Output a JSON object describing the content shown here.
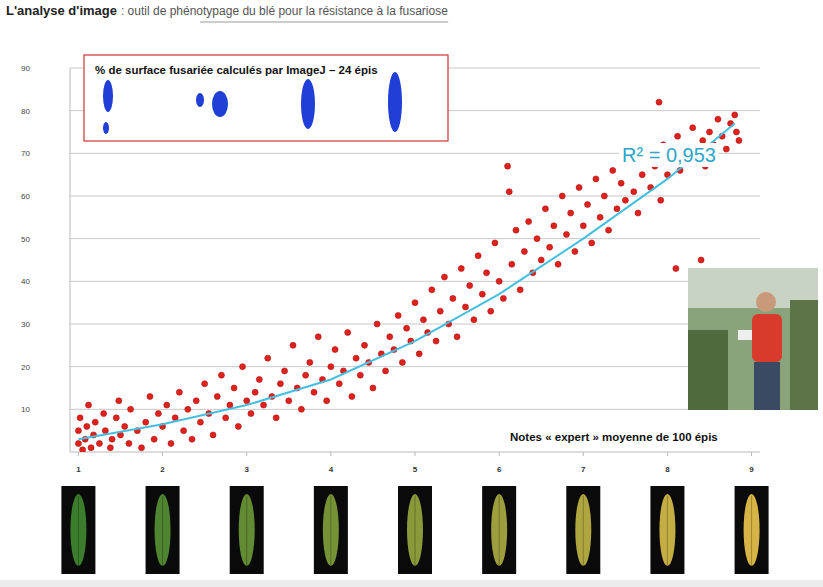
{
  "chart_data": {
    "type": "scatter",
    "title": "L'analyse d'image",
    "subtitle": ": outil de phénotypage du blé pour la résistance à la fusariose",
    "y_label": "% de surface fusariée calculés par ImageJ – 24 épis",
    "x_label": "Notes « expert » moyenne de 100 épis",
    "annotations": [
      "R² = 0,953"
    ],
    "xlim": [
      0.9,
      9.1
    ],
    "xticks": [
      1,
      2,
      3,
      4,
      5,
      6,
      7,
      8,
      9
    ],
    "ylim": [
      0,
      90
    ],
    "yticks": [
      10,
      20,
      30,
      40,
      50,
      60,
      70,
      80,
      90
    ],
    "grid": true,
    "series": [
      {
        "type": "scatter",
        "color": "#e3211c",
        "marker": "circle",
        "x": [
          1.0,
          1.0,
          1.02,
          1.05,
          1.08,
          1.1,
          1.12,
          1.15,
          1.18,
          1.2,
          1.25,
          1.3,
          1.32,
          1.38,
          1.4,
          1.45,
          1.48,
          1.5,
          1.55,
          1.6,
          1.62,
          1.7,
          1.75,
          1.8,
          1.85,
          1.9,
          1.95,
          2.0,
          2.05,
          2.1,
          2.15,
          2.2,
          2.25,
          2.3,
          2.35,
          2.4,
          2.45,
          2.5,
          2.55,
          2.6,
          2.65,
          2.7,
          2.75,
          2.8,
          2.85,
          2.9,
          2.95,
          3.0,
          3.05,
          3.1,
          3.15,
          3.2,
          3.25,
          3.3,
          3.35,
          3.4,
          3.45,
          3.5,
          3.55,
          3.6,
          3.65,
          3.7,
          3.75,
          3.8,
          3.85,
          3.9,
          3.95,
          4.0,
          4.05,
          4.1,
          4.15,
          4.2,
          4.25,
          4.3,
          4.35,
          4.4,
          4.45,
          4.5,
          4.55,
          4.6,
          4.65,
          4.7,
          4.75,
          4.8,
          4.85,
          4.9,
          4.95,
          5.0,
          5.05,
          5.1,
          5.15,
          5.2,
          5.25,
          5.3,
          5.35,
          5.4,
          5.45,
          5.5,
          5.55,
          5.6,
          5.65,
          5.7,
          5.75,
          5.8,
          5.85,
          5.9,
          5.95,
          6.0,
          6.05,
          6.1,
          6.12,
          6.15,
          6.2,
          6.25,
          6.3,
          6.35,
          6.4,
          6.45,
          6.5,
          6.55,
          6.6,
          6.65,
          6.7,
          6.75,
          6.8,
          6.85,
          6.9,
          6.95,
          7.0,
          7.05,
          7.1,
          7.15,
          7.2,
          7.25,
          7.3,
          7.35,
          7.4,
          7.45,
          7.5,
          7.55,
          7.6,
          7.65,
          7.7,
          7.75,
          7.8,
          7.85,
          7.9,
          7.92,
          7.95,
          8.0,
          8.05,
          8.1,
          8.12,
          8.15,
          8.2,
          8.25,
          8.3,
          8.35,
          8.4,
          8.42,
          8.45,
          8.5,
          8.55,
          8.6,
          8.65,
          8.7,
          8.75,
          8.8,
          8.82,
          8.85
        ],
        "values": [
          2,
          5,
          8,
          0.5,
          3,
          6,
          11,
          1,
          4,
          7,
          2,
          9,
          5,
          1,
          3,
          8,
          12,
          4,
          6,
          2,
          10,
          5,
          1,
          7,
          13,
          3,
          9,
          6,
          11,
          2,
          8,
          14,
          5,
          10,
          3,
          12,
          7,
          16,
          9,
          4,
          13,
          18,
          8,
          11,
          15,
          6,
          20,
          12,
          9,
          14,
          17,
          11,
          22,
          13,
          8,
          16,
          19,
          12,
          25,
          15,
          10,
          18,
          21,
          14,
          27,
          17,
          12,
          20,
          24,
          16,
          19,
          28,
          13,
          22,
          18,
          25,
          21,
          15,
          30,
          23,
          19,
          27,
          24,
          32,
          21,
          29,
          26,
          35,
          23,
          31,
          28,
          38,
          26,
          33,
          41,
          30,
          36,
          27,
          43,
          34,
          39,
          31,
          46,
          37,
          42,
          33,
          49,
          40,
          36,
          67,
          61,
          44,
          52,
          38,
          47,
          54,
          42,
          50,
          45,
          57,
          48,
          53,
          44,
          60,
          51,
          56,
          47,
          62,
          53,
          58,
          49,
          64,
          55,
          60,
          52,
          66,
          57,
          63,
          59,
          68,
          61,
          56,
          65,
          70,
          62,
          67,
          82,
          59,
          72,
          65,
          69,
          43,
          74,
          66,
          71,
          68,
          76,
          70,
          45,
          73,
          67,
          75,
          72,
          78,
          74,
          71,
          77,
          79,
          75,
          73
        ]
      },
      {
        "type": "line",
        "color": "#45bfe0",
        "line_style": "solid",
        "x": [
          1,
          2,
          3,
          4,
          5,
          6,
          7,
          8,
          8.8
        ],
        "values": [
          3,
          6.5,
          11,
          17,
          26,
          37,
          50,
          64,
          77
        ]
      }
    ]
  }
}
